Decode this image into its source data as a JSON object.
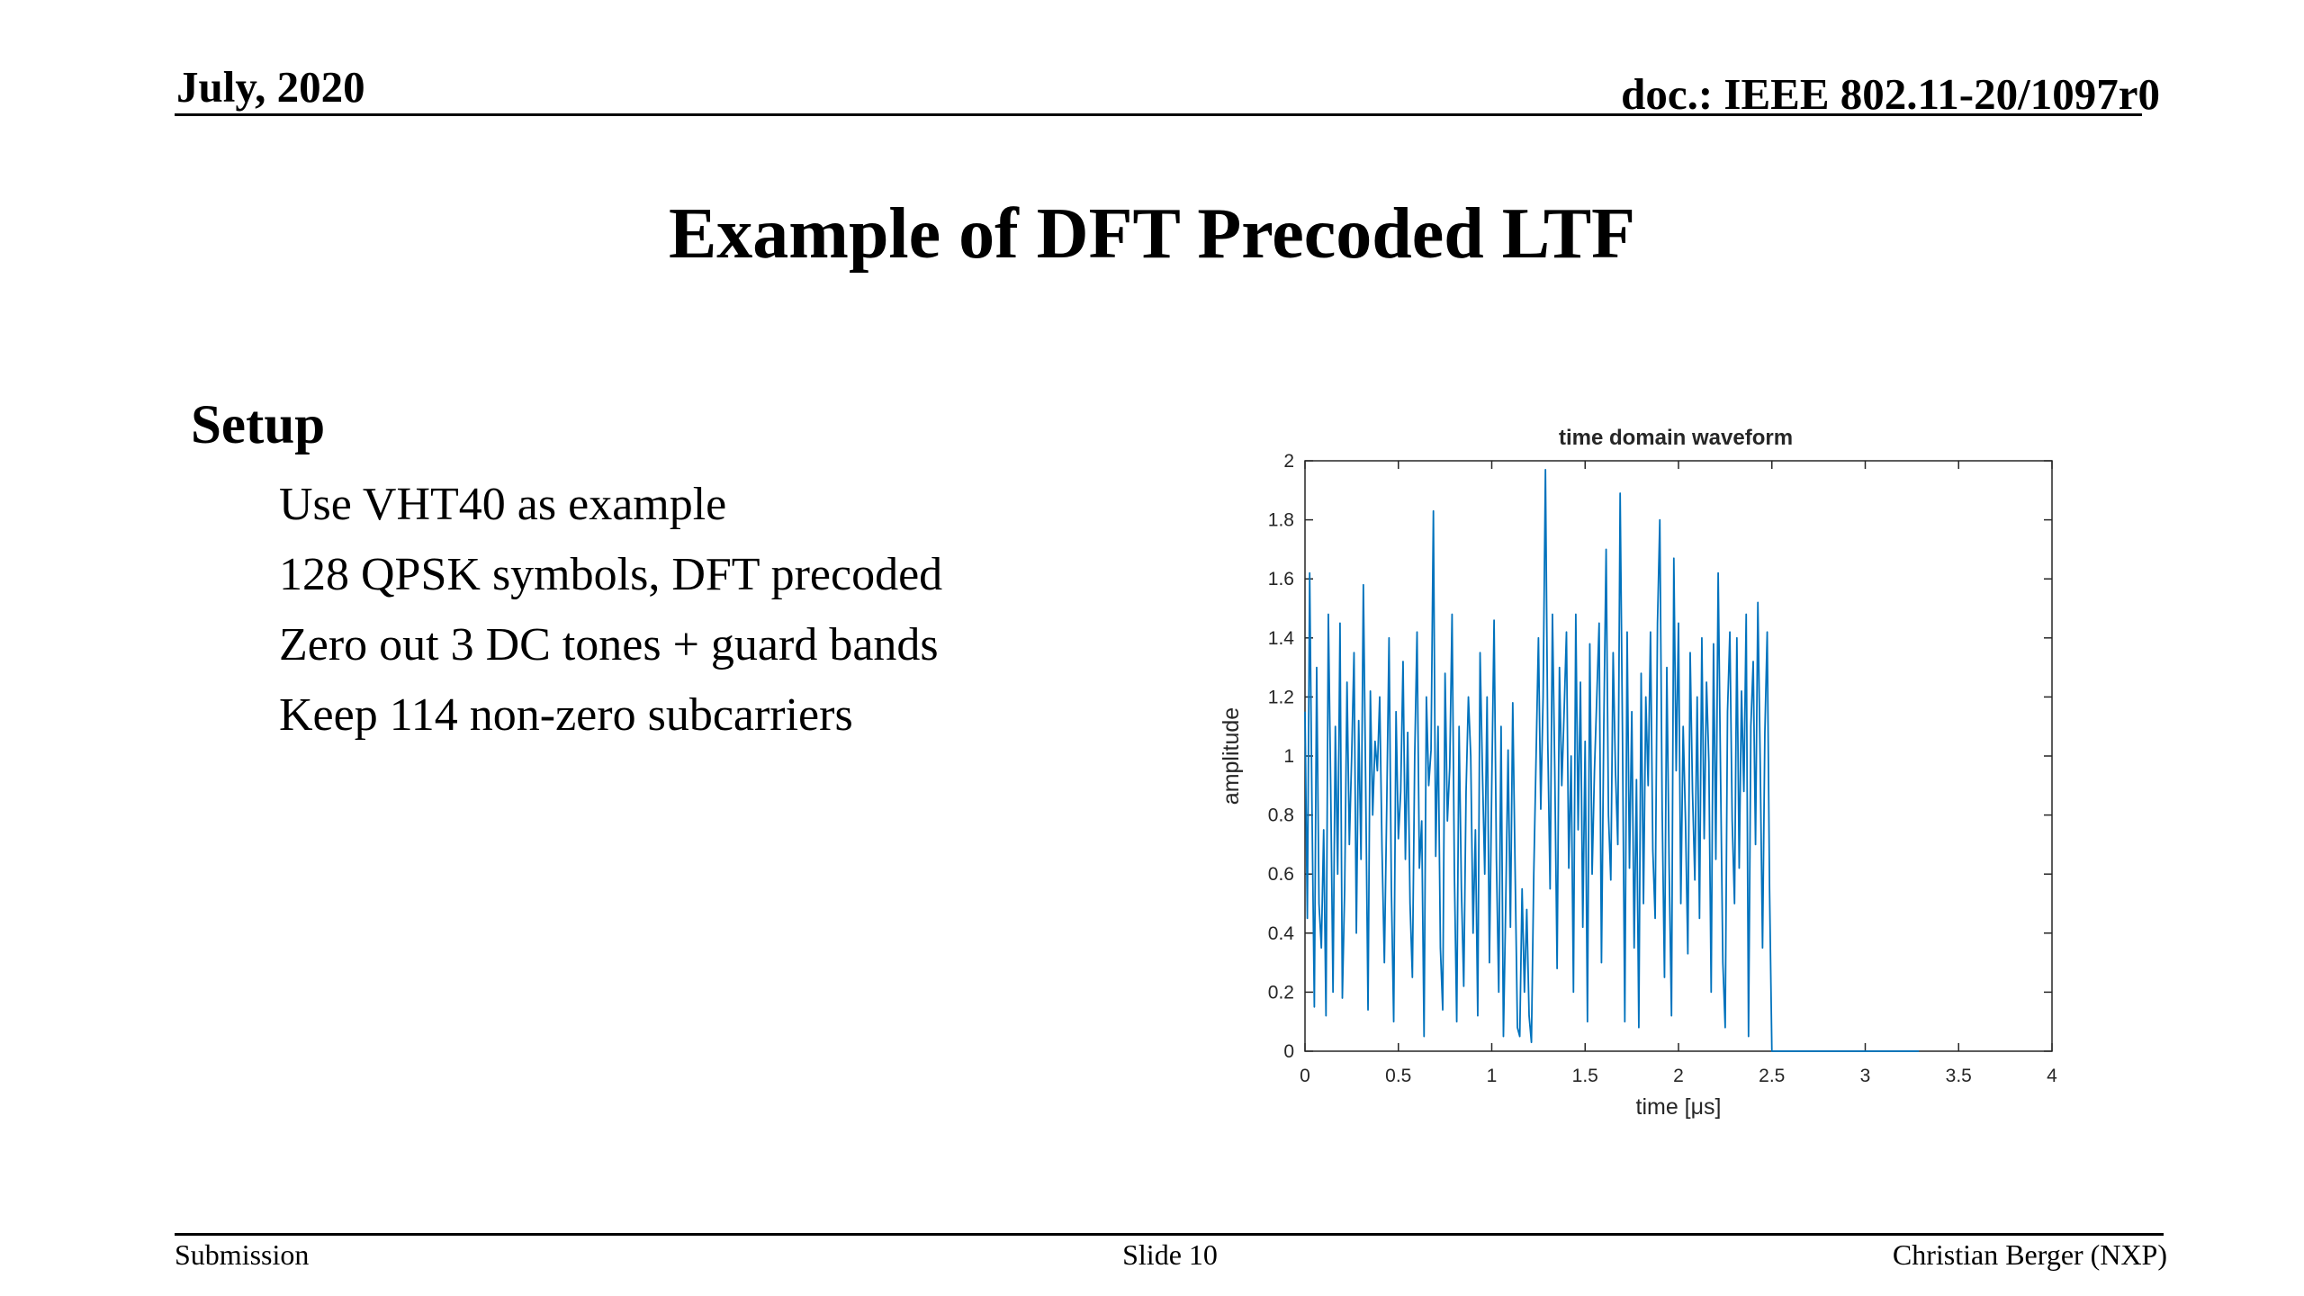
{
  "header": {
    "date": "July, 2020",
    "doc": "doc.: IEEE 802.11-20/1097r0"
  },
  "slide": {
    "title": "Example of DFT Precoded LTF",
    "section_heading": "Setup",
    "bullets": [
      "Use VHT40 as example",
      "128 QPSK symbols, DFT precoded",
      "Zero out 3 DC tones + guard bands",
      "Keep 114 non-zero subcarriers"
    ]
  },
  "footer": {
    "left": "Submission",
    "center": "Slide 10",
    "right": "Christian Berger (NXP)"
  },
  "colors": {
    "series": "#0072BD",
    "axis": "#262626"
  },
  "chart_data": {
    "type": "line",
    "title": "time domain waveform",
    "xlabel": "time [μs]",
    "ylabel": "amplitude",
    "xlim": [
      0,
      4
    ],
    "ylim": [
      0,
      2
    ],
    "xticks": [
      "0",
      "0.5",
      "1",
      "1.5",
      "2",
      "2.5",
      "3",
      "3.5",
      "4"
    ],
    "yticks": [
      "0",
      "0.2",
      "0.4",
      "0.6",
      "0.8",
      "1",
      "1.2",
      "1.4",
      "1.6",
      "1.8",
      "2"
    ],
    "grid": false,
    "series": [
      {
        "x_start": 0,
        "x_step": 0.0125,
        "values": [
          1.15,
          0.45,
          1.62,
          0.82,
          0.15,
          1.3,
          0.5,
          0.35,
          0.75,
          0.12,
          1.48,
          0.9,
          0.2,
          1.1,
          0.6,
          1.45,
          0.18,
          0.55,
          1.25,
          0.7,
          1.0,
          1.35,
          0.4,
          1.12,
          0.65,
          1.58,
          0.9,
          0.14,
          1.22,
          0.8,
          1.05,
          0.95,
          1.2,
          0.68,
          0.3,
          0.82,
          1.4,
          0.55,
          0.1,
          1.15,
          0.72,
          0.88,
          1.32,
          0.65,
          1.08,
          0.5,
          0.25,
          1.0,
          1.42,
          0.62,
          0.78,
          0.05,
          1.2,
          0.9,
          1.02,
          1.83,
          0.66,
          1.1,
          0.35,
          0.14,
          1.28,
          0.78,
          0.96,
          1.48,
          0.6,
          0.1,
          1.1,
          0.55,
          0.22,
          0.88,
          1.2,
          1.0,
          0.4,
          0.75,
          0.12,
          1.35,
          0.95,
          0.6,
          1.2,
          0.3,
          0.9,
          1.46,
          0.65,
          0.2,
          1.1,
          0.05,
          0.5,
          1.02,
          0.42,
          1.18,
          0.62,
          0.08,
          0.05,
          0.55,
          0.2,
          0.48,
          0.12,
          0.03,
          0.6,
          1.0,
          1.4,
          0.82,
          1.2,
          1.97,
          1.05,
          0.55,
          1.48,
          0.95,
          0.28,
          1.3,
          0.9,
          1.15,
          1.42,
          0.62,
          1.0,
          0.2,
          1.48,
          0.75,
          1.25,
          0.42,
          1.05,
          0.1,
          1.38,
          0.6,
          0.95,
          1.2,
          1.45,
          0.3,
          1.1,
          1.7,
          0.8,
          0.58,
          1.35,
          0.95,
          0.7,
          1.89,
          1.08,
          0.1,
          1.42,
          0.62,
          1.15,
          0.35,
          0.92,
          0.08,
          1.28,
          0.5,
          1.2,
          0.9,
          1.42,
          0.68,
          0.45,
          1.45,
          1.8,
          0.82,
          0.25,
          1.3,
          0.62,
          0.12,
          1.67,
          0.95,
          1.45,
          0.5,
          1.1,
          0.78,
          0.33,
          1.35,
          0.88,
          0.58,
          1.2,
          0.45,
          1.4,
          0.72,
          1.25,
          0.98,
          0.2,
          1.38,
          0.65,
          1.62,
          0.95,
          0.3,
          0.08,
          1.15,
          1.42,
          0.78,
          0.5,
          1.4,
          0.62,
          1.22,
          0.88,
          1.48,
          0.05,
          1.1,
          1.32,
          0.7,
          1.52,
          0.98,
          0.35,
          1.08,
          1.42,
          0.55,
          0.0,
          0.0,
          0.0,
          0.0,
          0.0,
          0.0,
          0.0,
          0.0,
          0.0,
          0.0,
          0.0,
          0.0,
          0.0,
          0.0,
          0.0,
          0.0,
          0.0,
          0.0,
          0.0,
          0.0,
          0.0,
          0.0,
          0.0,
          0.0,
          0.0,
          0.0,
          0.0,
          0.0,
          0.0,
          0.0,
          0.0,
          0.0,
          0.0,
          0.0,
          0.0,
          0.0,
          0.0,
          0.0,
          0.0,
          0.0,
          0.0,
          0.0,
          0.0,
          0.0,
          0.0,
          0.0,
          0.0,
          0.0,
          0.0,
          0.0,
          0.0,
          0.0,
          0.0,
          0.0,
          0.0,
          0.0,
          0.0,
          0.0,
          0.0,
          0.0,
          0.0,
          0.0,
          0.0,
          0.0
        ]
      }
    ]
  }
}
